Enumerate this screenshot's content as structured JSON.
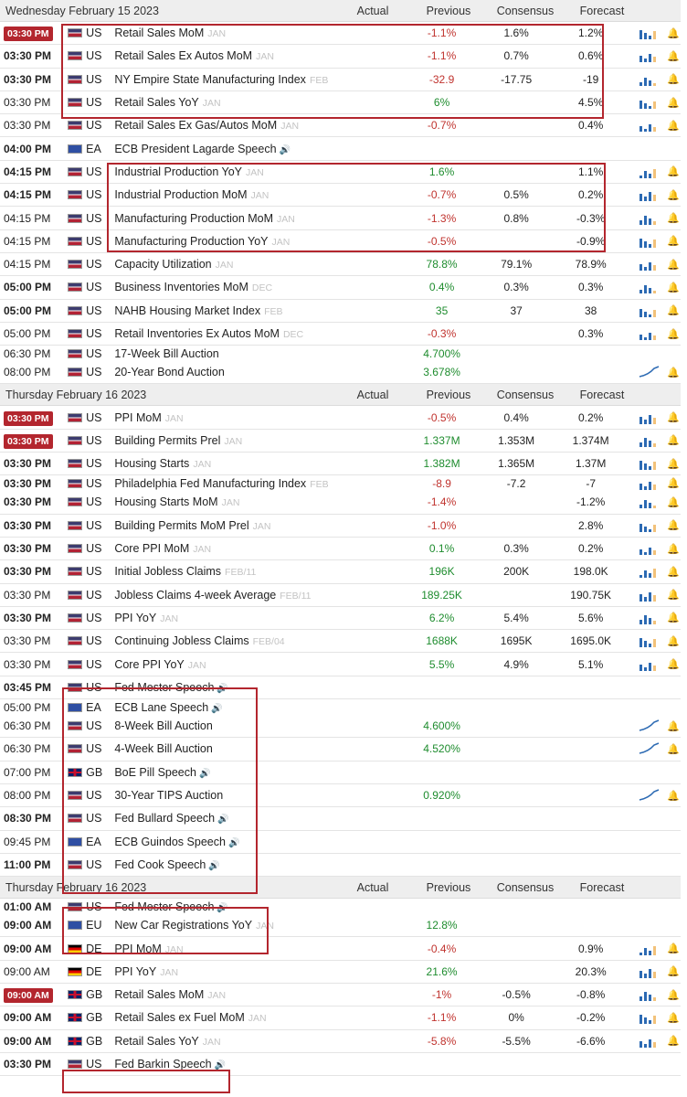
{
  "columns": {
    "actual": "Actual",
    "previous": "Previous",
    "consensus": "Consensus",
    "forecast": "Forecast"
  },
  "sections": [
    {
      "title": "Wednesday February 15 2023",
      "rows": [
        {
          "time": "03:30 PM",
          "badge": true,
          "flag": "us",
          "country": "US",
          "event": "Retail Sales MoM",
          "ref": "JAN",
          "previous": "-1.1%",
          "prev_tone": "neg",
          "consensus": "1.6%",
          "forecast": "1.2%",
          "spark": "bar-chart-icon"
        },
        {
          "time": "03:30 PM",
          "bold": true,
          "flag": "us",
          "country": "US",
          "event": "Retail Sales Ex Autos MoM",
          "ref": "JAN",
          "previous": "-1.1%",
          "prev_tone": "neg",
          "consensus": "0.7%",
          "forecast": "0.6%",
          "spark": "bar-chart-icon"
        },
        {
          "time": "03:30 PM",
          "bold": true,
          "flag": "us",
          "country": "US",
          "event": "NY Empire State Manufacturing Index",
          "ref": "FEB",
          "previous": "-32.9",
          "prev_tone": "neg",
          "consensus": "-17.75",
          "forecast": "-19",
          "spark": "bar-chart-icon"
        },
        {
          "time": "03:30 PM",
          "flag": "us",
          "country": "US",
          "event": "Retail Sales YoY",
          "ref": "JAN",
          "previous": "6%",
          "prev_tone": "pos",
          "consensus": "",
          "forecast": "4.5%",
          "spark": "bar-chart-icon"
        },
        {
          "time": "03:30 PM",
          "flag": "us",
          "country": "US",
          "event": "Retail Sales Ex Gas/Autos MoM",
          "ref": "JAN",
          "previous": "-0.7%",
          "prev_tone": "neg",
          "consensus": "",
          "forecast": "0.4%",
          "spark": "bar-chart-icon"
        },
        {
          "time": "04:00 PM",
          "bold": true,
          "flag": "ea",
          "country": "EA",
          "event": "ECB President Lagarde Speech",
          "speech": true,
          "ref": "",
          "previous": "",
          "consensus": "",
          "forecast": ""
        },
        {
          "time": "04:15 PM",
          "bold": true,
          "flag": "us",
          "country": "US",
          "event": "Industrial Production YoY",
          "ref": "JAN",
          "previous": "1.6%",
          "prev_tone": "pos",
          "consensus": "",
          "forecast": "1.1%",
          "spark": "bar-chart-icon"
        },
        {
          "time": "04:15 PM",
          "bold": true,
          "flag": "us",
          "country": "US",
          "event": "Industrial Production MoM",
          "ref": "JAN",
          "previous": "-0.7%",
          "prev_tone": "neg",
          "consensus": "0.5%",
          "forecast": "0.2%",
          "spark": "bar-chart-icon"
        },
        {
          "time": "04:15 PM",
          "flag": "us",
          "country": "US",
          "event": "Manufacturing Production MoM",
          "ref": "JAN",
          "previous": "-1.3%",
          "prev_tone": "neg",
          "consensus": "0.8%",
          "forecast": "-0.3%",
          "spark": "bar-chart-icon"
        },
        {
          "time": "04:15 PM",
          "flag": "us",
          "country": "US",
          "event": "Manufacturing Production YoY",
          "ref": "JAN",
          "previous": "-0.5%",
          "prev_tone": "neg",
          "consensus": "",
          "forecast": "-0.9%",
          "spark": "bar-chart-icon"
        },
        {
          "time": "04:15 PM",
          "flag": "us",
          "country": "US",
          "event": "Capacity Utilization",
          "ref": "JAN",
          "previous": "78.8%",
          "prev_tone": "pos",
          "consensus": "79.1%",
          "forecast": "78.9%",
          "spark": "bar-chart-icon"
        },
        {
          "time": "05:00 PM",
          "bold": true,
          "flag": "us",
          "country": "US",
          "event": "Business Inventories MoM",
          "ref": "DEC",
          "previous": "0.4%",
          "prev_tone": "pos",
          "consensus": "0.3%",
          "forecast": "0.3%",
          "spark": "bar-chart-icon"
        },
        {
          "time": "05:00 PM",
          "bold": true,
          "flag": "us",
          "country": "US",
          "event": "NAHB Housing Market Index",
          "ref": "FEB",
          "previous": "35",
          "prev_tone": "pos",
          "consensus": "37",
          "forecast": "38",
          "spark": "bar-chart-icon"
        },
        {
          "time": "05:00 PM",
          "flag": "us",
          "country": "US",
          "event": "Retail Inventories Ex Autos MoM",
          "ref": "DEC",
          "previous": "-0.3%",
          "prev_tone": "neg",
          "consensus": "",
          "forecast": "0.3%",
          "spark": "bar-chart-icon"
        },
        {
          "time": "06:30 PM",
          "flag": "us",
          "country": "US",
          "event": "17-Week Bill Auction",
          "ref": "",
          "previous": "4.700%",
          "prev_tone": "pos",
          "consensus": "",
          "forecast": "",
          "tight": true
        },
        {
          "time": "08:00 PM",
          "flag": "us",
          "country": "US",
          "event": "20-Year Bond Auction",
          "ref": "",
          "previous": "3.678%",
          "prev_tone": "pos",
          "consensus": "",
          "forecast": "",
          "spark": "line-chart-icon"
        }
      ]
    },
    {
      "title": "Thursday February 16 2023",
      "rows": [
        {
          "time": "03:30 PM",
          "badge": true,
          "flag": "us",
          "country": "US",
          "event": "PPI MoM",
          "ref": "JAN",
          "previous": "-0.5%",
          "prev_tone": "neg",
          "consensus": "0.4%",
          "forecast": "0.2%",
          "spark": "bar-chart-icon"
        },
        {
          "time": "03:30 PM",
          "badge": true,
          "flag": "us",
          "country": "US",
          "event": "Building Permits Prel",
          "ref": "JAN",
          "previous": "1.337M",
          "prev_tone": "pos",
          "consensus": "1.353M",
          "forecast": "1.374M",
          "spark": "bar-chart-icon"
        },
        {
          "time": "03:30 PM",
          "bold": true,
          "flag": "us",
          "country": "US",
          "event": "Housing Starts",
          "ref": "JAN",
          "previous": "1.382M",
          "prev_tone": "pos",
          "consensus": "1.365M",
          "forecast": "1.37M",
          "spark": "bar-chart-icon"
        },
        {
          "time": "03:30 PM",
          "bold": true,
          "flag": "us",
          "country": "US",
          "event": "Philadelphia Fed Manufacturing Index",
          "ref": "FEB",
          "previous": "-8.9",
          "prev_tone": "neg",
          "consensus": "-7.2",
          "forecast": "-7",
          "spark": "bar-chart-icon",
          "tight": true
        },
        {
          "time": "03:30 PM",
          "bold": true,
          "flag": "us",
          "country": "US",
          "event": "Housing Starts MoM",
          "ref": "JAN",
          "previous": "-1.4%",
          "prev_tone": "neg",
          "consensus": "",
          "forecast": "-1.2%",
          "spark": "bar-chart-icon"
        },
        {
          "time": "03:30 PM",
          "bold": true,
          "flag": "us",
          "country": "US",
          "event": "Building Permits MoM Prel",
          "ref": "JAN",
          "previous": "-1.0%",
          "prev_tone": "neg",
          "consensus": "",
          "forecast": "2.8%",
          "spark": "bar-chart-icon"
        },
        {
          "time": "03:30 PM",
          "bold": true,
          "flag": "us",
          "country": "US",
          "event": "Core PPI MoM",
          "ref": "JAN",
          "previous": "0.1%",
          "prev_tone": "pos",
          "consensus": "0.3%",
          "forecast": "0.2%",
          "spark": "bar-chart-icon"
        },
        {
          "time": "03:30 PM",
          "bold": true,
          "flag": "us",
          "country": "US",
          "event": "Initial Jobless Claims",
          "ref": "FEB/11",
          "previous": "196K",
          "prev_tone": "pos",
          "consensus": "200K",
          "forecast": "198.0K",
          "spark": "bar-chart-icon"
        },
        {
          "time": "03:30 PM",
          "flag": "us",
          "country": "US",
          "event": "Jobless Claims 4-week Average",
          "ref": "FEB/11",
          "previous": "189.25K",
          "prev_tone": "pos",
          "consensus": "",
          "forecast": "190.75K",
          "spark": "bar-chart-icon"
        },
        {
          "time": "03:30 PM",
          "bold": true,
          "flag": "us",
          "country": "US",
          "event": "PPI YoY",
          "ref": "JAN",
          "previous": "6.2%",
          "prev_tone": "pos",
          "consensus": "5.4%",
          "forecast": "5.6%",
          "spark": "bar-chart-icon"
        },
        {
          "time": "03:30 PM",
          "flag": "us",
          "country": "US",
          "event": "Continuing Jobless Claims",
          "ref": "FEB/04",
          "previous": "1688K",
          "prev_tone": "pos",
          "consensus": "1695K",
          "forecast": "1695.0K",
          "spark": "bar-chart-icon"
        },
        {
          "time": "03:30 PM",
          "flag": "us",
          "country": "US",
          "event": "Core PPI YoY",
          "ref": "JAN",
          "previous": "5.5%",
          "prev_tone": "pos",
          "consensus": "4.9%",
          "forecast": "5.1%",
          "spark": "bar-chart-icon"
        },
        {
          "time": "03:45 PM",
          "bold": true,
          "flag": "us",
          "country": "US",
          "event": "Fed Mester Speech",
          "speech": true,
          "ref": "",
          "previous": "",
          "consensus": "",
          "forecast": ""
        },
        {
          "time": "05:00 PM",
          "flag": "ea",
          "country": "EA",
          "event": "ECB Lane Speech",
          "speech": true,
          "ref": "",
          "previous": "",
          "consensus": "",
          "forecast": "",
          "tight": true
        },
        {
          "time": "06:30 PM",
          "flag": "us",
          "country": "US",
          "event": "8-Week Bill Auction",
          "ref": "",
          "previous": "4.600%",
          "prev_tone": "pos",
          "consensus": "",
          "forecast": "",
          "spark": "line-chart-icon"
        },
        {
          "time": "06:30 PM",
          "flag": "us",
          "country": "US",
          "event": "4-Week Bill Auction",
          "ref": "",
          "previous": "4.520%",
          "prev_tone": "pos",
          "consensus": "",
          "forecast": "",
          "spark": "line-chart-icon"
        },
        {
          "time": "07:00 PM",
          "flag": "gb",
          "country": "GB",
          "event": "BoE Pill Speech",
          "speech": true,
          "ref": "",
          "previous": "",
          "consensus": "",
          "forecast": ""
        },
        {
          "time": "08:00 PM",
          "flag": "us",
          "country": "US",
          "event": "30-Year TIPS Auction",
          "ref": "",
          "previous": "0.920%",
          "prev_tone": "pos",
          "consensus": "",
          "forecast": "",
          "spark": "line-chart-icon"
        },
        {
          "time": "08:30 PM",
          "bold": true,
          "flag": "us",
          "country": "US",
          "event": "Fed Bullard Speech",
          "speech": true,
          "ref": "",
          "previous": "",
          "consensus": "",
          "forecast": ""
        },
        {
          "time": "09:45 PM",
          "flag": "ea",
          "country": "EA",
          "event": "ECB Guindos Speech",
          "speech": true,
          "ref": "",
          "previous": "",
          "consensus": "",
          "forecast": ""
        },
        {
          "time": "11:00 PM",
          "bold": true,
          "flag": "us",
          "country": "US",
          "event": "Fed Cook Speech",
          "speech": true,
          "ref": "",
          "previous": "",
          "consensus": "",
          "forecast": ""
        }
      ]
    },
    {
      "title": "Thursday February 16 2023",
      "rows": [
        {
          "time": "01:00 AM",
          "bold": true,
          "flag": "us",
          "country": "US",
          "event": "Fed Mester Speech",
          "speech": true,
          "ref": "",
          "previous": "",
          "consensus": "",
          "forecast": "",
          "tight": true
        },
        {
          "time": "09:00 AM",
          "bold": true,
          "flag": "ea",
          "country": "EU",
          "event": "New Car Registrations YoY",
          "ref": "JAN",
          "previous": "12.8%",
          "prev_tone": "pos",
          "consensus": "",
          "forecast": ""
        },
        {
          "time": "09:00 AM",
          "bold": true,
          "flag": "de",
          "country": "DE",
          "event": "PPI MoM",
          "ref": "JAN",
          "previous": "-0.4%",
          "prev_tone": "neg",
          "consensus": "",
          "forecast": "0.9%",
          "spark": "bar-chart-icon"
        },
        {
          "time": "09:00 AM",
          "flag": "de",
          "country": "DE",
          "event": "PPI YoY",
          "ref": "JAN",
          "previous": "21.6%",
          "prev_tone": "pos",
          "consensus": "",
          "forecast": "20.3%",
          "spark": "bar-chart-icon"
        },
        {
          "time": "09:00 AM",
          "badge": true,
          "flag": "gb",
          "country": "GB",
          "event": "Retail Sales MoM",
          "ref": "JAN",
          "previous": "-1%",
          "prev_tone": "neg",
          "consensus": "-0.5%",
          "forecast": "-0.8%",
          "spark": "bar-chart-icon"
        },
        {
          "time": "09:00 AM",
          "bold": true,
          "flag": "gb",
          "country": "GB",
          "event": "Retail Sales ex Fuel MoM",
          "ref": "JAN",
          "previous": "-1.1%",
          "prev_tone": "neg",
          "consensus": "0%",
          "forecast": "-0.2%",
          "spark": "bar-chart-icon"
        },
        {
          "time": "09:00 AM",
          "bold": true,
          "flag": "gb",
          "country": "GB",
          "event": "Retail Sales YoY",
          "ref": "JAN",
          "previous": "-5.8%",
          "prev_tone": "neg",
          "consensus": "-5.5%",
          "forecast": "-6.6%",
          "spark": "bar-chart-icon"
        },
        {
          "time": "03:30 PM",
          "bold": true,
          "flag": "us",
          "country": "US",
          "event": "Fed Barkin Speech",
          "speech": true,
          "ref": "",
          "previous": "",
          "consensus": "",
          "forecast": "",
          "nobell": true
        }
      ]
    }
  ]
}
